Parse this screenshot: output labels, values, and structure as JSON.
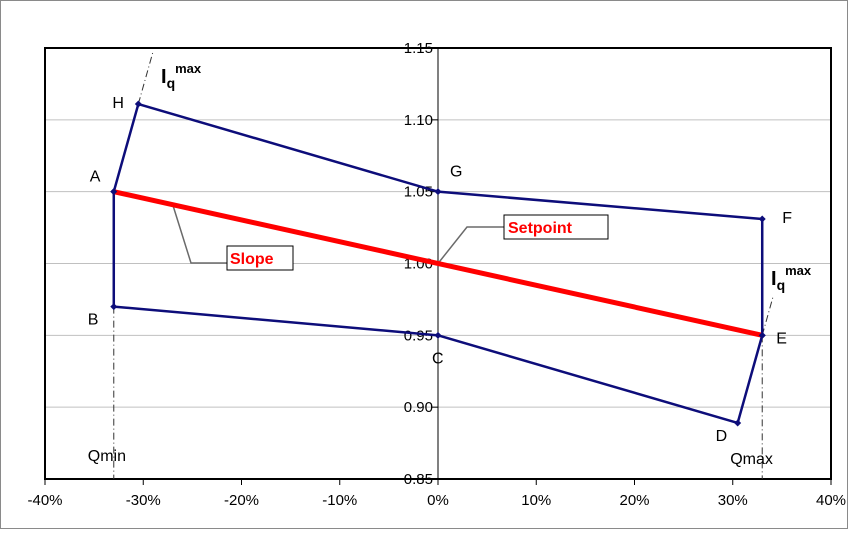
{
  "chart_data": {
    "type": "line",
    "xlim": [
      -0.4,
      0.4
    ],
    "ylim": [
      0.85,
      1.15
    ],
    "x_ticks": [
      -0.4,
      -0.3,
      -0.2,
      -0.1,
      0.0,
      0.1,
      0.2,
      0.3,
      0.4
    ],
    "x_tick_labels": [
      "-40%",
      "-30%",
      "-20%",
      "-10%",
      "0%",
      "10%",
      "20%",
      "30%",
      "40%"
    ],
    "y_ticks": [
      0.85,
      0.9,
      0.95,
      1.0,
      1.05,
      1.1,
      1.15
    ],
    "y_tick_labels": [
      "0.85",
      "0.90",
      "0.95",
      "1.00",
      "1.05",
      "1.10",
      "1.15"
    ],
    "grid": "horizontal",
    "colors": {
      "boundary": "#0d0d7a",
      "slope": "#ff0000",
      "grid": "#c0c0c0"
    },
    "boundary_polygon": [
      {
        "label": "A",
        "x": -0.33,
        "y": 1.05
      },
      {
        "label": "H",
        "x": -0.305,
        "y": 1.111
      },
      {
        "label": "G",
        "x": 0.0,
        "y": 1.05
      },
      {
        "label": "F",
        "x": 0.33,
        "y": 1.031
      },
      {
        "label": "E",
        "x": 0.33,
        "y": 0.95
      },
      {
        "label": "D",
        "x": 0.305,
        "y": 0.889
      },
      {
        "label": "C",
        "x": 0.0,
        "y": 0.95
      },
      {
        "label": "B",
        "x": -0.33,
        "y": 0.97
      }
    ],
    "slope_line": [
      {
        "x": -0.33,
        "y": 1.05
      },
      {
        "x": 0.33,
        "y": 0.95
      }
    ],
    "setpoint": {
      "x": 0.0,
      "y": 1.0
    },
    "qmin": -0.33,
    "qmax": 0.33,
    "annotations": {
      "slope": "Slope",
      "setpoint": "Setpoint",
      "qmin": "Qmin",
      "qmax": "Qmax",
      "iq_base": "I",
      "iq_sub": "q",
      "iq_sup": "max"
    }
  }
}
